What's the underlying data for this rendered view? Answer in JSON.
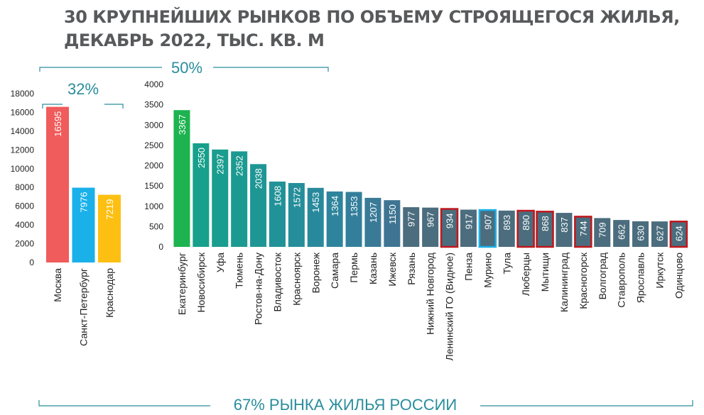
{
  "title": [
    "30 КРУПНЕЙШИХ РЫНКОВ ПО ОБЪЕМУ СТРОЯЩЕГОСЯ ЖИЛЬЯ,",
    "ДЕКАБРЬ 2022, ТЫС. КВ. М"
  ],
  "annotations": [
    "32%",
    "50%",
    "67% РЫНКА ЖИЛЬЯ РОССИИ"
  ],
  "chart_data": [
    {
      "type": "bar",
      "categories": [
        "Москва",
        "Санкт-Петербург",
        "Краснодар"
      ],
      "values": [
        16595,
        7976,
        7219
      ],
      "colors": [
        "#f05b5b",
        "#1ab1ea",
        "#fdc012"
      ],
      "ylim": [
        0,
        18000
      ],
      "yticks": [
        0,
        2000,
        4000,
        6000,
        8000,
        10000,
        12000,
        14000,
        16000,
        18000
      ]
    },
    {
      "type": "bar",
      "categories": [
        "Екатеринбург",
        "Новосибирск",
        "Уфа",
        "Тюмень",
        "Ростов-на-Дону",
        "Владивосток",
        "Красноярск",
        "Воронеж",
        "Самара",
        "Пермь",
        "Казань",
        "Ижевск",
        "Рязань",
        "Нижний Новгород",
        "Ленинский ГО (Видное)",
        "Пенза",
        "Мурино",
        "Тула",
        "Люберцы",
        "Мытищи",
        "Калининград",
        "Красногорск",
        "Волгоград",
        "Ставрополь",
        "Ярославль",
        "Иркутск",
        "Одинцово"
      ],
      "values": [
        3367,
        2550,
        2397,
        2352,
        2038,
        1608,
        1572,
        1453,
        1364,
        1353,
        1207,
        1150,
        977,
        967,
        934,
        917,
        907,
        893,
        890,
        868,
        837,
        744,
        709,
        662,
        630,
        627,
        624
      ],
      "colors": [
        "#1db350",
        "#17a08b",
        "#199d8e",
        "#1b9a91",
        "#1e9694",
        "#219297",
        "#258e9a",
        "#29899c",
        "#2e849d",
        "#337f9b",
        "#397a97",
        "#3f7592",
        "#4b6d7e",
        "#4b6d7e",
        "#4b6d7e",
        "#4b6d7e",
        "#4b6d7e",
        "#4b6d7e",
        "#4b6d7e",
        "#4b6d7e",
        "#4b6d7e",
        "#4b6d7e",
        "#4b6d7e",
        "#4b6d7e",
        "#4b6d7e",
        "#4b6d7e",
        "#4b6d7e"
      ],
      "outline_colors": [
        null,
        null,
        null,
        null,
        null,
        null,
        null,
        null,
        null,
        null,
        null,
        null,
        null,
        null,
        "#c0171c",
        null,
        "#1ab1ea",
        null,
        "#c0171c",
        "#c0171c",
        null,
        "#c0171c",
        null,
        null,
        null,
        null,
        "#c0171c"
      ],
      "ylim": [
        0,
        4000
      ],
      "yticks": [
        0,
        500,
        1000,
        1500,
        2000,
        2500,
        3000,
        3500,
        4000
      ]
    }
  ]
}
